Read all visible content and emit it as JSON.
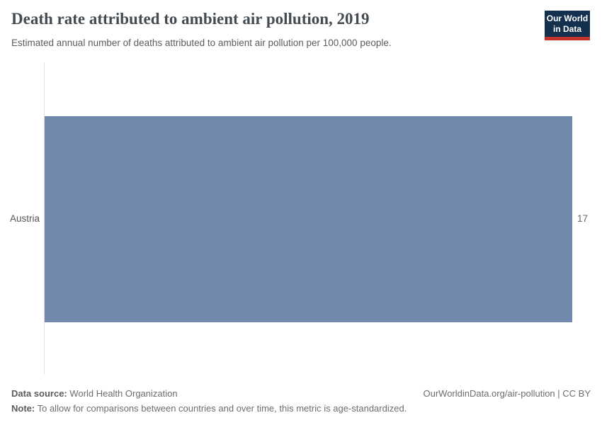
{
  "header": {
    "title": "Death rate attributed to ambient air pollution, 2019",
    "subtitle": "Estimated annual number of deaths attributed to ambient air pollution per 100,000 people.",
    "logo": {
      "line1": "Our World",
      "line2": "in Data"
    }
  },
  "chart_data": {
    "type": "bar",
    "orientation": "horizontal",
    "title": "Death rate attributed to ambient air pollution, 2019",
    "categories": [
      "Austria"
    ],
    "values": [
      17
    ],
    "value_labels": [
      "17"
    ],
    "xlim": [
      0,
      17
    ],
    "xlabel": "",
    "ylabel": "",
    "grid": false,
    "legend": false,
    "bar_color": "#7289ae"
  },
  "footer": {
    "data_source_label": "Data source:",
    "data_source": "World Health Organization",
    "note_label": "Note:",
    "note": "To allow for comparisons between countries and over time, this metric is age-standardized.",
    "credit": "OurWorldinData.org/air-pollution | CC BY"
  },
  "colors": {
    "bar_color": "#7289ae",
    "logo_bg": "#14304f",
    "logo_red": "#c4342c",
    "axis_line": "#dfdfdf"
  }
}
